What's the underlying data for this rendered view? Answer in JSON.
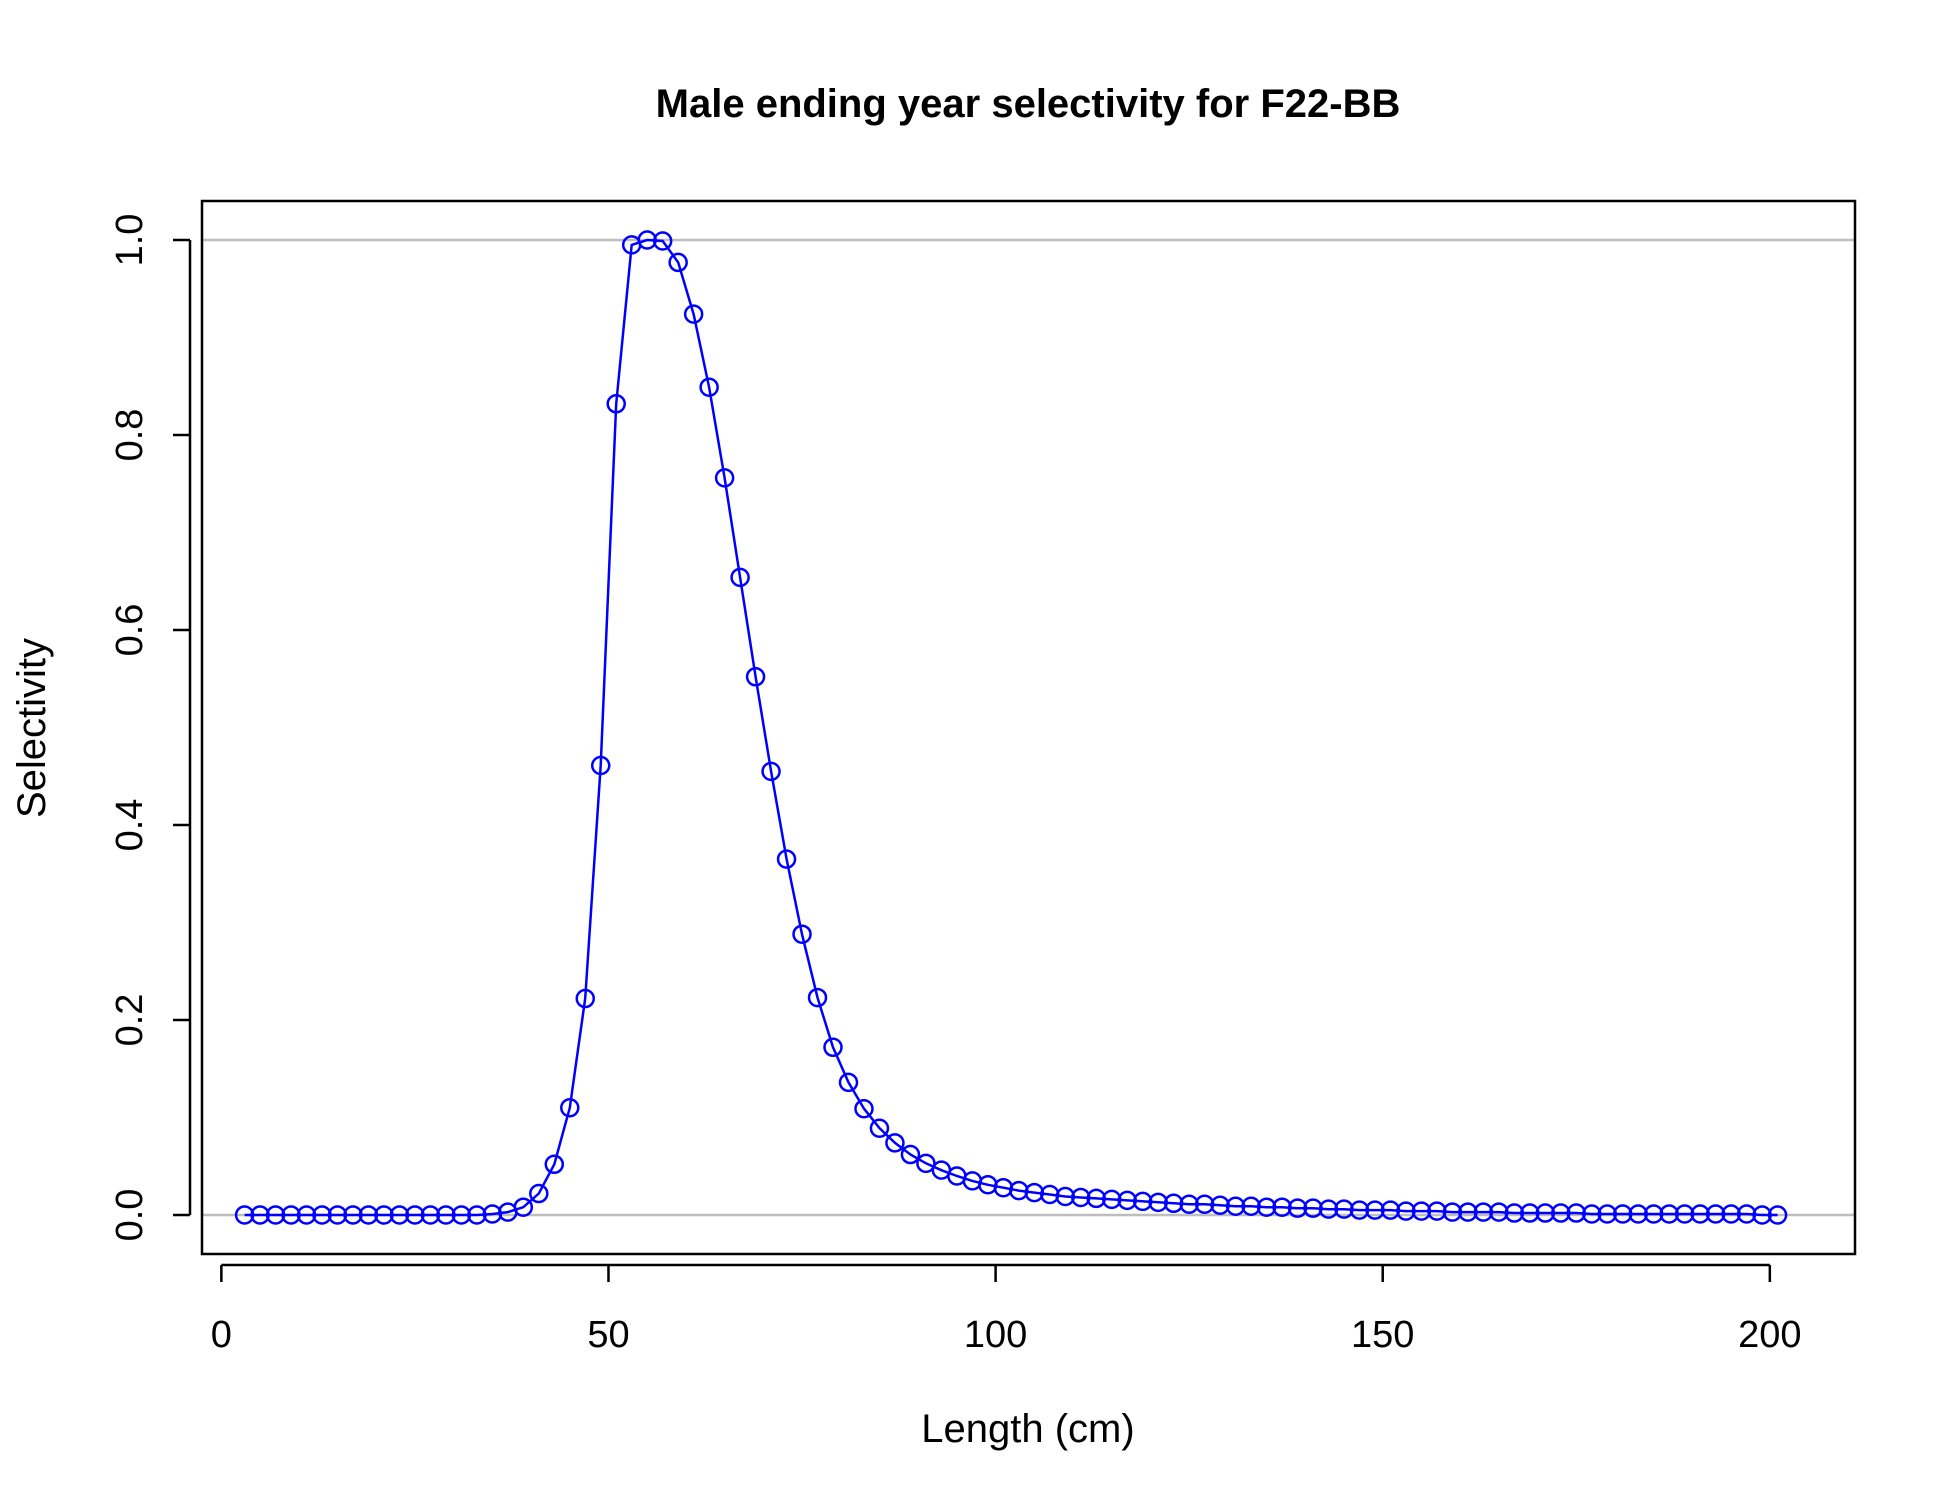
{
  "chart_data": {
    "type": "line",
    "title": "Male ending year selectivity for F22-BB",
    "xlabel": "Length (cm)",
    "ylabel": "Selectivity",
    "xlim": [
      -2.5,
      211
    ],
    "ylim": [
      -0.04,
      1.04
    ],
    "xticks": [
      0,
      50,
      100,
      150,
      200
    ],
    "xtick_labels": [
      "0",
      "50",
      "100",
      "150",
      "200"
    ],
    "yticks": [
      0,
      0.2,
      0.4,
      0.6,
      0.8,
      1
    ],
    "ytick_labels": [
      "0.0",
      "0.2",
      "0.4",
      "0.6",
      "0.8",
      "1.0"
    ],
    "reference_lines": [
      0,
      1
    ],
    "line_color": "#0000ff",
    "reference_line_color": "#bebebe",
    "series": [
      {
        "x": [
          3,
          5,
          7,
          9,
          11,
          13,
          15,
          17,
          19,
          21,
          23,
          25,
          27,
          29,
          31,
          33,
          35,
          37,
          39,
          41,
          43,
          45,
          47,
          49,
          51,
          53,
          55,
          57,
          59,
          61,
          63,
          65,
          67,
          69,
          71,
          73,
          75,
          77,
          79,
          81,
          83,
          85,
          87,
          89,
          91,
          93,
          95,
          97,
          99,
          101,
          103,
          105,
          107,
          109,
          111,
          113,
          115,
          117,
          119,
          121,
          123,
          125,
          127,
          129,
          131,
          133,
          135,
          137,
          139,
          141,
          143,
          145,
          147,
          149,
          151,
          153,
          155,
          157,
          159,
          161,
          163,
          165,
          167,
          169,
          171,
          173,
          175,
          177,
          179,
          181,
          183,
          185,
          187,
          189,
          191,
          193,
          195,
          197,
          199,
          201
        ],
        "y": [
          0,
          0,
          0,
          0,
          0,
          0,
          0,
          0,
          0,
          0,
          0,
          0,
          0,
          0,
          0,
          0,
          0.001,
          0.003,
          0.008,
          0.022,
          0.052,
          0.11,
          0.222,
          0.461,
          0.832,
          0.995,
          1.0,
          0.999,
          0.977,
          0.924,
          0.849,
          0.756,
          0.654,
          0.552,
          0.455,
          0.365,
          0.288,
          0.223,
          0.172,
          0.136,
          0.109,
          0.089,
          0.074,
          0.062,
          0.053,
          0.046,
          0.04,
          0.035,
          0.031,
          0.028,
          0.025,
          0.023,
          0.021,
          0.019,
          0.018,
          0.017,
          0.016,
          0.015,
          0.014,
          0.013,
          0.012,
          0.011,
          0.011,
          0.01,
          0.009,
          0.009,
          0.008,
          0.008,
          0.007,
          0.007,
          0.006,
          0.006,
          0.005,
          0.005,
          0.005,
          0.004,
          0.004,
          0.004,
          0.003,
          0.003,
          0.003,
          0.003,
          0.002,
          0.002,
          0.002,
          0.002,
          0.002,
          0.001,
          0.001,
          0.001,
          0.001,
          0.001,
          0.001,
          0.001,
          0.001,
          0.001,
          0.001,
          0.001,
          0,
          0
        ]
      }
    ]
  }
}
